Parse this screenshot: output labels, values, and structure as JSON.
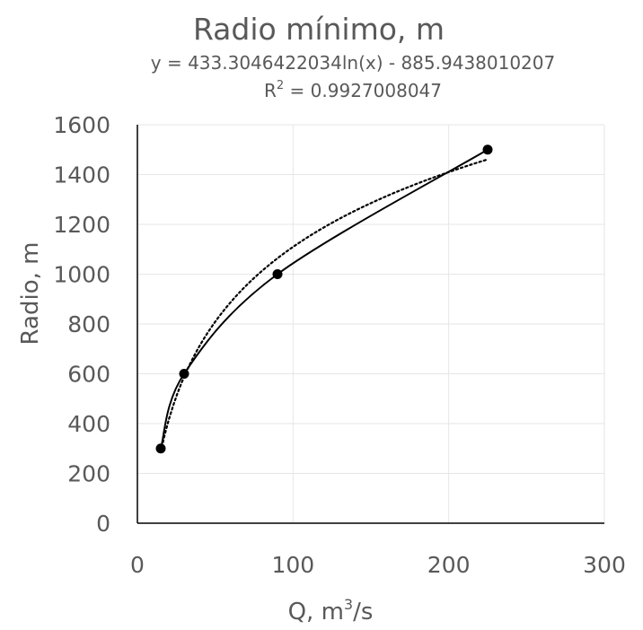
{
  "chart_data": {
    "type": "scatter",
    "title": "Radio mínimo, m",
    "trendline": {
      "equation": "y = 433.3046422034ln(x) - 885.9438010207",
      "r2_prefix": "R",
      "r2_exponent": "2",
      "r2_value": " = 0.9927008047",
      "style": "dotted",
      "color": "#000000",
      "coefficient_a": 433.3046422034,
      "coefficient_b": -885.9438010207,
      "x_range": [
        15,
        225
      ]
    },
    "xlabel": {
      "prefix": "Q, m",
      "exponent": "3",
      "suffix": "/s"
    },
    "ylabel": "Radio, m",
    "xlim": [
      0,
      300
    ],
    "ylim": [
      0,
      1600
    ],
    "x_ticks": [
      "0",
      "100",
      "200",
      "300"
    ],
    "y_ticks": [
      "0",
      "200",
      "400",
      "600",
      "800",
      "1000",
      "1200",
      "1400",
      "1600"
    ],
    "grid": true,
    "series": [
      {
        "x": [
          15,
          30,
          90,
          225
        ],
        "y": [
          300,
          600,
          1000,
          1500
        ],
        "line_style": "smooth",
        "marker": "circle",
        "color": "#000000"
      }
    ]
  }
}
